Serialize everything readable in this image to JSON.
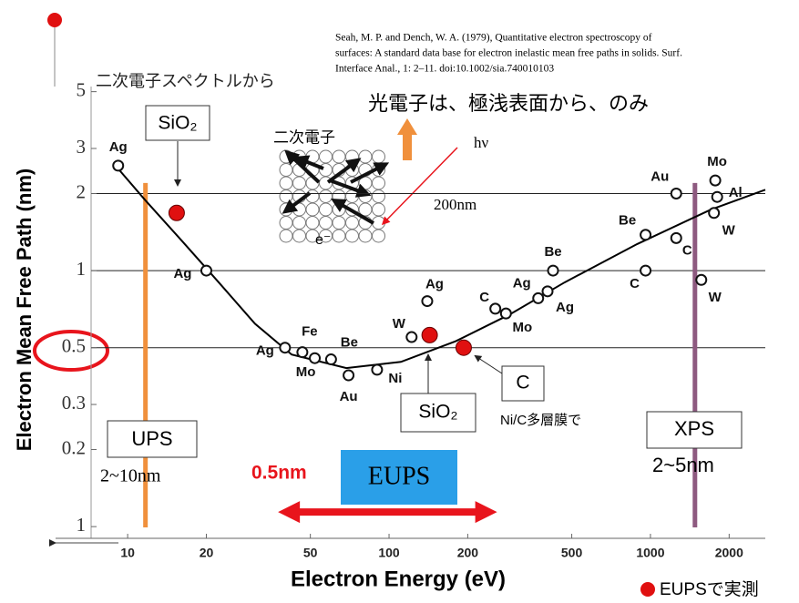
{
  "citation": [
    "Seah, M. P. and Dench, W. A. (1979),  Quantitative electron spectroscopy of",
    "surfaces: A standard data base for electron inelastic mean free paths in solids. Surf.",
    "Interface Anal., 1: 2–11. doi:10.1002/sia.740010103"
  ],
  "chart_data": {
    "type": "scatter",
    "x_label": "Electron Energy (eV)",
    "y_label": "Electron Mean Free Path  (nm)",
    "log_x": true,
    "log_y": true,
    "xlim": [
      5.3,
      2750
    ],
    "ylim": [
      0.09,
      5.5
    ],
    "xticks": [
      10,
      20,
      50,
      100,
      200,
      500,
      1000,
      2000
    ],
    "yticks": [
      5,
      3,
      2,
      1,
      0.5,
      0.3,
      0.2,
      {
        "value": 0.1,
        "label": "1"
      }
    ],
    "grid_y": [
      2,
      1,
      0.5
    ],
    "points": {
      "color": "#111111",
      "labels": [
        "Ag",
        "Ag",
        "Ag",
        "Fe",
        "Mo",
        "Be",
        "Au",
        "Ni",
        "W",
        "Ag",
        "C",
        "Mo",
        "Ag",
        "Ag",
        "Be",
        "C",
        "Be",
        "C",
        "Au",
        "W",
        "W",
        "Mo",
        "Al"
      ],
      "x": [
        9.2,
        20,
        40,
        46.6,
        52,
        60,
        70,
        90,
        122,
        140,
        255,
        280,
        372,
        404,
        424,
        958,
        958,
        1255,
        1255,
        1565,
        1750,
        1770,
        1800
      ],
      "values": [
        2.57,
        1.0,
        0.5,
        0.48,
        0.455,
        0.45,
        0.39,
        0.41,
        0.55,
        0.76,
        0.71,
        0.68,
        0.78,
        0.83,
        1.0,
        1.0,
        1.38,
        1.34,
        2.0,
        0.92,
        1.68,
        2.25,
        1.94
      ]
    },
    "eups": {
      "name": "EUPSで実測",
      "color": "#e01010",
      "x": [
        15.4,
        143,
        193
      ],
      "values": [
        1.68,
        0.56,
        0.5
      ]
    },
    "curve": {
      "color": "#000000",
      "x": [
        9.2,
        11.7,
        16.2,
        22.3,
        30.7,
        42.4,
        68.7,
        111,
        180,
        290,
        470,
        890,
        1700,
        2750
      ],
      "values": [
        2.5,
        1.88,
        1.3,
        0.9,
        0.62,
        0.47,
        0.416,
        0.44,
        0.53,
        0.675,
        0.9,
        1.27,
        1.73,
        2.07
      ]
    },
    "vlines": [
      {
        "x": 11.7,
        "top": 2.2,
        "color": "#f0903c"
      },
      {
        "x": 1480,
        "top": 2.2,
        "color": "#8e5a80"
      }
    ],
    "range_arrow": {
      "x": [
        37.6,
        259
      ],
      "y": 0.114,
      "color": "#e8141c"
    },
    "annotations": {
      "secondary_spectrum": "二次電子スペクトルから",
      "sio2": "SiO₂",
      "photoelectron": "光電子は、極浅表面から、のみ",
      "hv": "hν",
      "secondary": "二次電子",
      "depth": "200nm",
      "electron": "e⁻",
      "ups": "UPS",
      "ups_range": "2~10nm",
      "eups_depth": "0.5nm",
      "eups": "EUPS",
      "c": "C",
      "nic": "Ni/C多層膜で",
      "xps": "XPS",
      "xps_range": "2~5nm"
    }
  }
}
